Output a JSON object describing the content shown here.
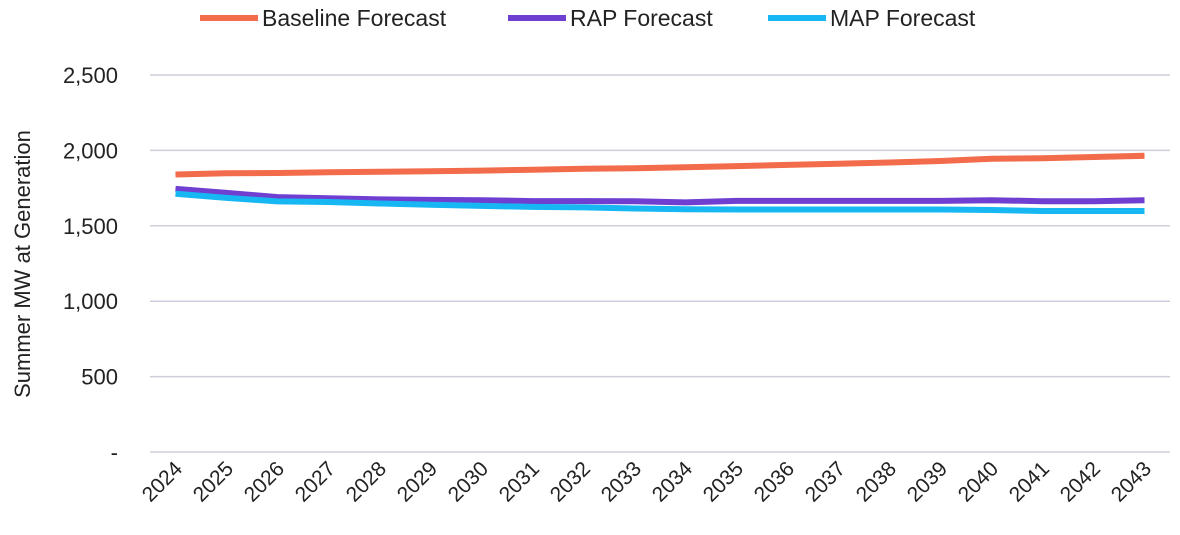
{
  "chart_data": {
    "type": "line",
    "title": "",
    "xlabel": "",
    "ylabel": "Summer MW at Generation",
    "categories": [
      "2024",
      "2025",
      "2026",
      "2027",
      "2028",
      "2029",
      "2030",
      "2031",
      "2032",
      "2033",
      "2034",
      "2035",
      "2036",
      "2037",
      "2038",
      "2039",
      "2040",
      "2041",
      "2042",
      "2043"
    ],
    "ylim": [
      0,
      2500
    ],
    "yticks": [
      0,
      500,
      1000,
      1500,
      2000,
      2500
    ],
    "ytick_labels": [
      "-",
      "500",
      "1,000",
      "1,500",
      "2,000",
      "2,500"
    ],
    "grid": true,
    "legend_position": "top",
    "series": [
      {
        "name": "Baseline Forecast",
        "color": "#F26B4A",
        "values": [
          1840,
          1848,
          1850,
          1855,
          1858,
          1862,
          1866,
          1872,
          1878,
          1882,
          1888,
          1896,
          1904,
          1912,
          1920,
          1930,
          1944,
          1948,
          1956,
          1964
        ]
      },
      {
        "name": "RAP Forecast",
        "color": "#6F3FD1",
        "values": [
          1745,
          1718,
          1690,
          1683,
          1675,
          1672,
          1670,
          1664,
          1664,
          1663,
          1655,
          1665,
          1665,
          1665,
          1665,
          1665,
          1670,
          1663,
          1663,
          1670
        ]
      },
      {
        "name": "MAP Forecast",
        "color": "#16B7F2",
        "values": [
          1712,
          1685,
          1662,
          1658,
          1648,
          1640,
          1632,
          1625,
          1622,
          1615,
          1610,
          1608,
          1608,
          1608,
          1608,
          1608,
          1605,
          1598,
          1598,
          1598
        ]
      }
    ]
  }
}
